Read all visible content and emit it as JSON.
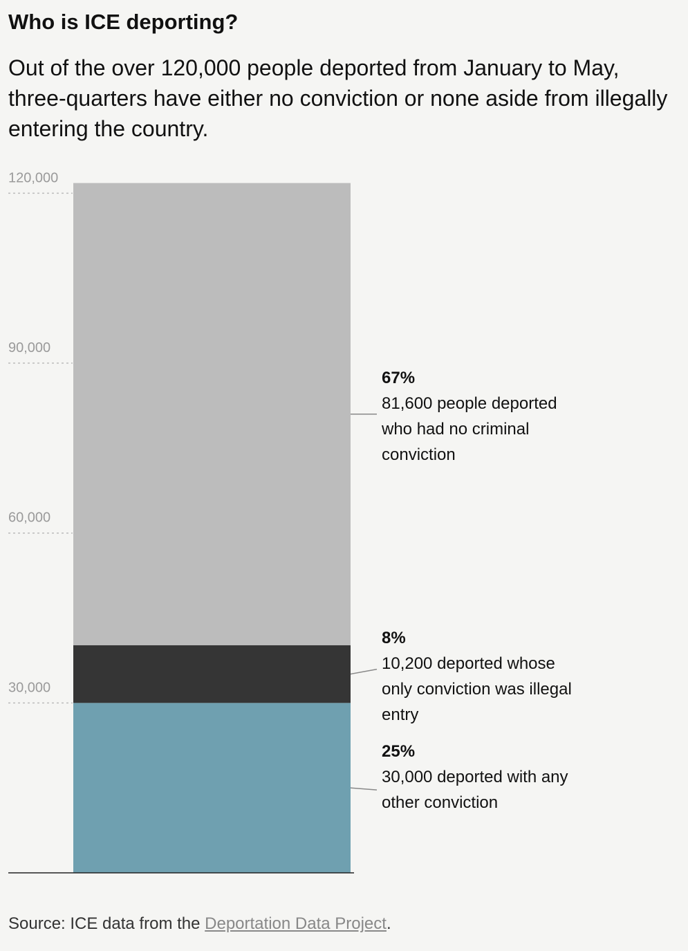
{
  "chart_data": {
    "type": "bar",
    "stacked": true,
    "title": "Who is ICE deporting?",
    "subtitle": "Out of the over 120,000 people deported from January to May, three-quarters have either no conviction or none aside from illegally entering the country.",
    "categories": [
      null
    ],
    "series": [
      {
        "name": "30,000 deported with any other conviction",
        "label": "25%",
        "color": "#6fa0b0",
        "values": [
          30000
        ]
      },
      {
        "name": "10,200 deported whose only conviction was illegal entry",
        "label": "8%",
        "color": "#353535",
        "values": [
          10200
        ]
      },
      {
        "name": "81,600 people deported who had no criminal conviction",
        "label": "67%",
        "color": "#bcbcbc",
        "values": [
          81600
        ]
      }
    ],
    "ylim": [
      0,
      122000
    ],
    "yticks": [
      {
        "value": 30000,
        "label": "30,000"
      },
      {
        "value": 60000,
        "label": "60,000"
      },
      {
        "value": 90000,
        "label": "90,000"
      },
      {
        "value": 120000,
        "label": "120,000"
      }
    ],
    "grid": true,
    "source": {
      "prefix": "Source: ICE data from the ",
      "link": "Deportation Data Project",
      "suffix": "."
    }
  }
}
